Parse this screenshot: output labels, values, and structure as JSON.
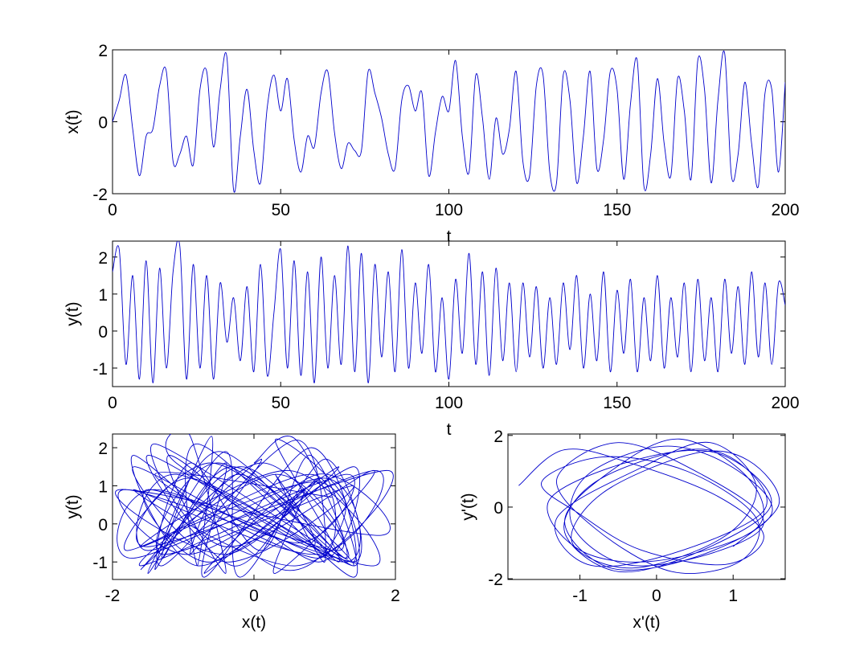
{
  "chart_data": [
    {
      "type": "line",
      "x_label": "t",
      "y_label": "x(t)",
      "x": [
        0,
        2,
        4,
        6,
        8,
        10,
        12,
        14,
        16,
        18,
        20,
        22,
        24,
        26,
        28,
        30,
        32,
        34,
        36,
        38,
        40,
        42,
        44,
        46,
        48,
        50,
        52,
        54,
        56,
        58,
        60,
        62,
        64,
        66,
        68,
        70,
        72,
        74,
        76,
        78,
        80,
        82,
        84,
        86,
        88,
        90,
        92,
        94,
        96,
        98,
        100,
        102,
        104,
        106,
        108,
        110,
        112,
        114,
        116,
        118,
        120,
        122,
        124,
        126,
        128,
        130,
        132,
        134,
        136,
        138,
        140,
        142,
        144,
        146,
        148,
        150,
        152,
        154,
        156,
        158,
        160,
        162,
        164,
        166,
        168,
        170,
        172,
        174,
        176,
        178,
        180,
        182,
        184,
        186,
        188,
        190,
        192,
        194,
        196,
        198,
        200
      ],
      "series": [
        {
          "color": "#0000cc",
          "values": [
            0,
            0.6,
            1.3,
            -0.2,
            -1.5,
            -0.4,
            -0.2,
            1.0,
            1.4,
            -1.1,
            -0.9,
            -0.4,
            -1.2,
            0.9,
            1.4,
            -0.7,
            0.9,
            1.8,
            -1.9,
            -0.4,
            0.9,
            -0.8,
            -1.7,
            0.4,
            1.3,
            0.3,
            1.2,
            -0.5,
            -1.4,
            -0.4,
            -0.7,
            0.8,
            1.4,
            -0.3,
            -1.3,
            -0.6,
            -0.8,
            -0.8,
            1.4,
            0.8,
            0.1,
            -0.9,
            -1.3,
            0.6,
            1.0,
            0.3,
            0.8,
            -1.5,
            -0.3,
            0.7,
            0.3,
            1.7,
            -0.4,
            -1.4,
            1.3,
            0.1,
            -1.6,
            0.1,
            -0.9,
            -0.2,
            1.4,
            -1.1,
            -1.5,
            1.0,
            1.3,
            -1.4,
            -1.7,
            1.3,
            0.6,
            -1.7,
            -0.4,
            1.4,
            -1.3,
            -0.5,
            1.4,
            0.9,
            -1.6,
            0.5,
            1.7,
            -1.8,
            -0.9,
            1.2,
            -0.6,
            -1.5,
            1.2,
            0.3,
            -1.6,
            1.7,
            0.9,
            -1.7,
            0.6,
            1.9,
            -1.5,
            -0.9,
            1.1,
            -0.6,
            -1.8,
            0.8,
            0.9,
            -1.4,
            1.1
          ]
        }
      ],
      "xlim": [
        0,
        200
      ],
      "xticks": [
        0,
        50,
        100,
        150,
        200
      ],
      "ylim": [
        -2,
        2
      ],
      "yticks": [
        -2,
        0,
        2
      ]
    },
    {
      "type": "line",
      "x_label": "t",
      "y_label": "y(t)",
      "x": [
        0,
        2,
        4,
        6,
        8,
        10,
        12,
        14,
        16,
        18,
        20,
        22,
        24,
        26,
        28,
        30,
        32,
        34,
        36,
        38,
        40,
        42,
        44,
        46,
        48,
        50,
        52,
        54,
        56,
        58,
        60,
        62,
        64,
        66,
        68,
        70,
        72,
        74,
        76,
        78,
        80,
        82,
        84,
        86,
        88,
        90,
        92,
        94,
        96,
        98,
        100,
        102,
        104,
        106,
        108,
        110,
        112,
        114,
        116,
        118,
        120,
        122,
        124,
        126,
        128,
        130,
        132,
        134,
        136,
        138,
        140,
        142,
        144,
        146,
        148,
        150,
        152,
        154,
        156,
        158,
        160,
        162,
        164,
        166,
        168,
        170,
        172,
        174,
        176,
        178,
        180,
        182,
        184,
        186,
        188,
        190,
        192,
        194,
        196,
        198,
        200
      ],
      "series": [
        {
          "color": "#0000cc",
          "values": [
            1.6,
            2.2,
            -0.9,
            1.5,
            -1.3,
            1.9,
            -1.4,
            1.7,
            -1.0,
            1.6,
            2.3,
            -1.3,
            1.8,
            -1.0,
            1.5,
            -1.3,
            1.3,
            -0.3,
            0.9,
            -0.8,
            1.2,
            -1.1,
            1.8,
            -1.2,
            0.5,
            2.2,
            -1.0,
            1.9,
            -1.2,
            1.6,
            -1.4,
            2.0,
            -1.0,
            1.5,
            -0.9,
            2.3,
            -1.1,
            2.1,
            -1.4,
            1.8,
            -0.7,
            1.6,
            -1.1,
            2.2,
            -1.0,
            1.3,
            -0.6,
            1.8,
            -1.1,
            0.9,
            -1.3,
            1.4,
            -0.6,
            2.1,
            -0.9,
            1.6,
            -1.2,
            1.7,
            -0.8,
            1.3,
            -1.1,
            1.3,
            -0.7,
            1.2,
            -1.0,
            0.9,
            -0.9,
            1.3,
            -0.5,
            1.5,
            -1.0,
            1.0,
            -0.8,
            1.6,
            -1.1,
            1.1,
            -0.6,
            1.4,
            -1.1,
            0.9,
            -0.8,
            1.5,
            -1.0,
            0.9,
            -0.7,
            1.3,
            -1.1,
            1.4,
            -0.8,
            0.9,
            -1.1,
            1.4,
            -0.6,
            1.2,
            -0.9,
            1.6,
            -0.7,
            1.3,
            -0.9,
            1.3,
            0.7
          ]
        }
      ],
      "xlim": [
        0,
        200
      ],
      "xticks": [
        0,
        50,
        100,
        150,
        200
      ],
      "ylim": [
        -1.5,
        2.43
      ],
      "yticks": [
        -1,
        0,
        1,
        2
      ]
    },
    {
      "type": "line",
      "x_label": "x(t)",
      "y_label": "y(t)",
      "x": [
        0,
        0.6,
        1.3,
        -0.2,
        -1.5,
        -0.4,
        -0.2,
        1.0,
        1.4,
        -1.1,
        -0.9,
        -0.4,
        -1.2,
        0.9,
        1.4,
        -0.7,
        0.9,
        1.8,
        -1.9,
        -0.4,
        0.9,
        -0.8,
        -1.7,
        0.4,
        1.3,
        0.3,
        1.2,
        -0.5,
        -1.4,
        -0.4,
        -0.7,
        0.8,
        1.4,
        -0.3,
        -1.3,
        -0.6,
        -0.8,
        -0.8,
        1.4,
        0.8,
        0.1,
        -0.9,
        -1.3,
        0.6,
        1.0,
        0.3,
        0.8,
        -1.5,
        -0.3,
        0.7,
        0.3,
        1.7,
        -0.4,
        -1.4,
        1.3,
        0.1,
        -1.6,
        0.1,
        -0.9,
        -0.2,
        1.4,
        -1.1,
        -1.5,
        1.0,
        1.3,
        -1.4,
        -1.7,
        1.3,
        0.6,
        -1.7,
        -0.4,
        1.4,
        -1.3,
        -0.5,
        1.4,
        0.9,
        -1.6,
        0.5,
        1.7,
        -1.8,
        -0.9,
        1.2,
        -0.6,
        -1.5,
        1.2,
        0.3,
        -1.6,
        1.7,
        0.9,
        -1.7,
        0.6,
        1.9,
        -1.5,
        -0.9,
        1.1,
        -0.6,
        -1.8,
        0.8,
        0.9,
        -1.4,
        1.1
      ],
      "series": [
        {
          "color": "#0000cc",
          "values": [
            1.6,
            2.2,
            -0.9,
            1.5,
            -1.3,
            1.9,
            -1.4,
            1.7,
            -1.0,
            1.6,
            2.3,
            -1.3,
            1.8,
            -1.0,
            1.5,
            -1.3,
            1.3,
            -0.3,
            0.9,
            -0.8,
            1.2,
            -1.1,
            1.8,
            -1.2,
            0.5,
            2.2,
            -1.0,
            1.9,
            -1.2,
            1.6,
            -1.4,
            2.0,
            -1.0,
            1.5,
            -0.9,
            2.3,
            -1.1,
            2.1,
            -1.4,
            1.8,
            -0.7,
            1.6,
            -1.1,
            2.2,
            -1.0,
            1.3,
            -0.6,
            1.8,
            -1.1,
            0.9,
            -1.3,
            1.4,
            -0.6,
            2.1,
            -0.9,
            1.6,
            -1.2,
            1.7,
            -0.8,
            1.3,
            -1.1,
            1.3,
            -0.7,
            1.2,
            -1.0,
            0.9,
            -0.9,
            1.3,
            -0.5,
            1.5,
            -1.0,
            1.0,
            -0.8,
            1.6,
            -1.1,
            1.1,
            -0.6,
            1.4,
            -1.1,
            0.9,
            -0.8,
            1.5,
            -1.0,
            0.9,
            -0.7,
            1.3,
            -1.1,
            1.4,
            -0.8,
            0.9,
            -1.1,
            1.4,
            -0.6,
            1.2,
            -0.9,
            1.6,
            -0.7,
            1.3,
            -0.9,
            1.3,
            0.7
          ]
        }
      ],
      "xlim": [
        -2,
        2
      ],
      "xticks": [
        -2,
        0,
        2
      ],
      "ylim": [
        -1.46,
        2.36
      ],
      "yticks": [
        -1,
        0,
        1,
        2
      ]
    },
    {
      "type": "line",
      "x_label": "x'(t)",
      "y_label": "y'(t)",
      "x": [
        -1.8,
        -1.2,
        -0.3,
        0.8,
        1.4,
        0.9,
        -0.2,
        -1.0,
        -1.5,
        -0.7,
        0.4,
        1.3,
        1.1,
        0.2,
        -0.8,
        -1.3,
        -0.5,
        0.6,
        1.4,
        0.7,
        -0.4,
        -1.1,
        -0.9,
        0.1,
        1.0,
        1.5,
        0.5,
        -0.6,
        -1.2,
        -0.6,
        0.3,
        1.2,
        1.3,
        0.0,
        -1.0,
        -1.4,
        -0.3,
        0.8,
        1.5,
        0.6,
        -0.5,
        -1.2,
        -0.8,
        0.4,
        1.1,
        1.4,
        0.2,
        -0.9,
        -1.3,
        -0.2,
        0.7,
        1.3,
        0.9,
        -0.3,
        -1.1,
        -0.7,
        0.5,
        1.2,
        1.6,
        1.0
      ],
      "series": [
        {
          "color": "#0000cc",
          "values": [
            0.6,
            1.6,
            1.2,
            0.3,
            -0.8,
            -1.6,
            -1.2,
            -0.2,
            0.7,
            1.4,
            1.0,
            -0.3,
            -1.5,
            -1.8,
            -0.6,
            0.8,
            1.8,
            0.9,
            -0.4,
            -1.3,
            -1.6,
            -0.5,
            0.9,
            1.7,
            1.1,
            -0.2,
            -1.4,
            -1.7,
            -0.4,
            1.0,
            1.9,
            0.8,
            -0.6,
            -1.5,
            -1.2,
            0.2,
            1.3,
            1.5,
            0.1,
            -1.2,
            -1.8,
            -0.7,
            0.7,
            1.6,
            1.2,
            -0.1,
            -1.3,
            -1.6,
            -0.3,
            1.1,
            1.8,
            0.6,
            -0.8,
            -1.7,
            -1.0,
            0.4,
            1.5,
            1.3,
            0.1,
            -1.1
          ]
        }
      ],
      "xlim": [
        -1.94,
        1.68
      ],
      "xticks": [
        -1,
        0,
        1
      ],
      "ylim": [
        -2.02,
        2.04
      ],
      "yticks": [
        -2,
        0,
        2
      ]
    }
  ]
}
